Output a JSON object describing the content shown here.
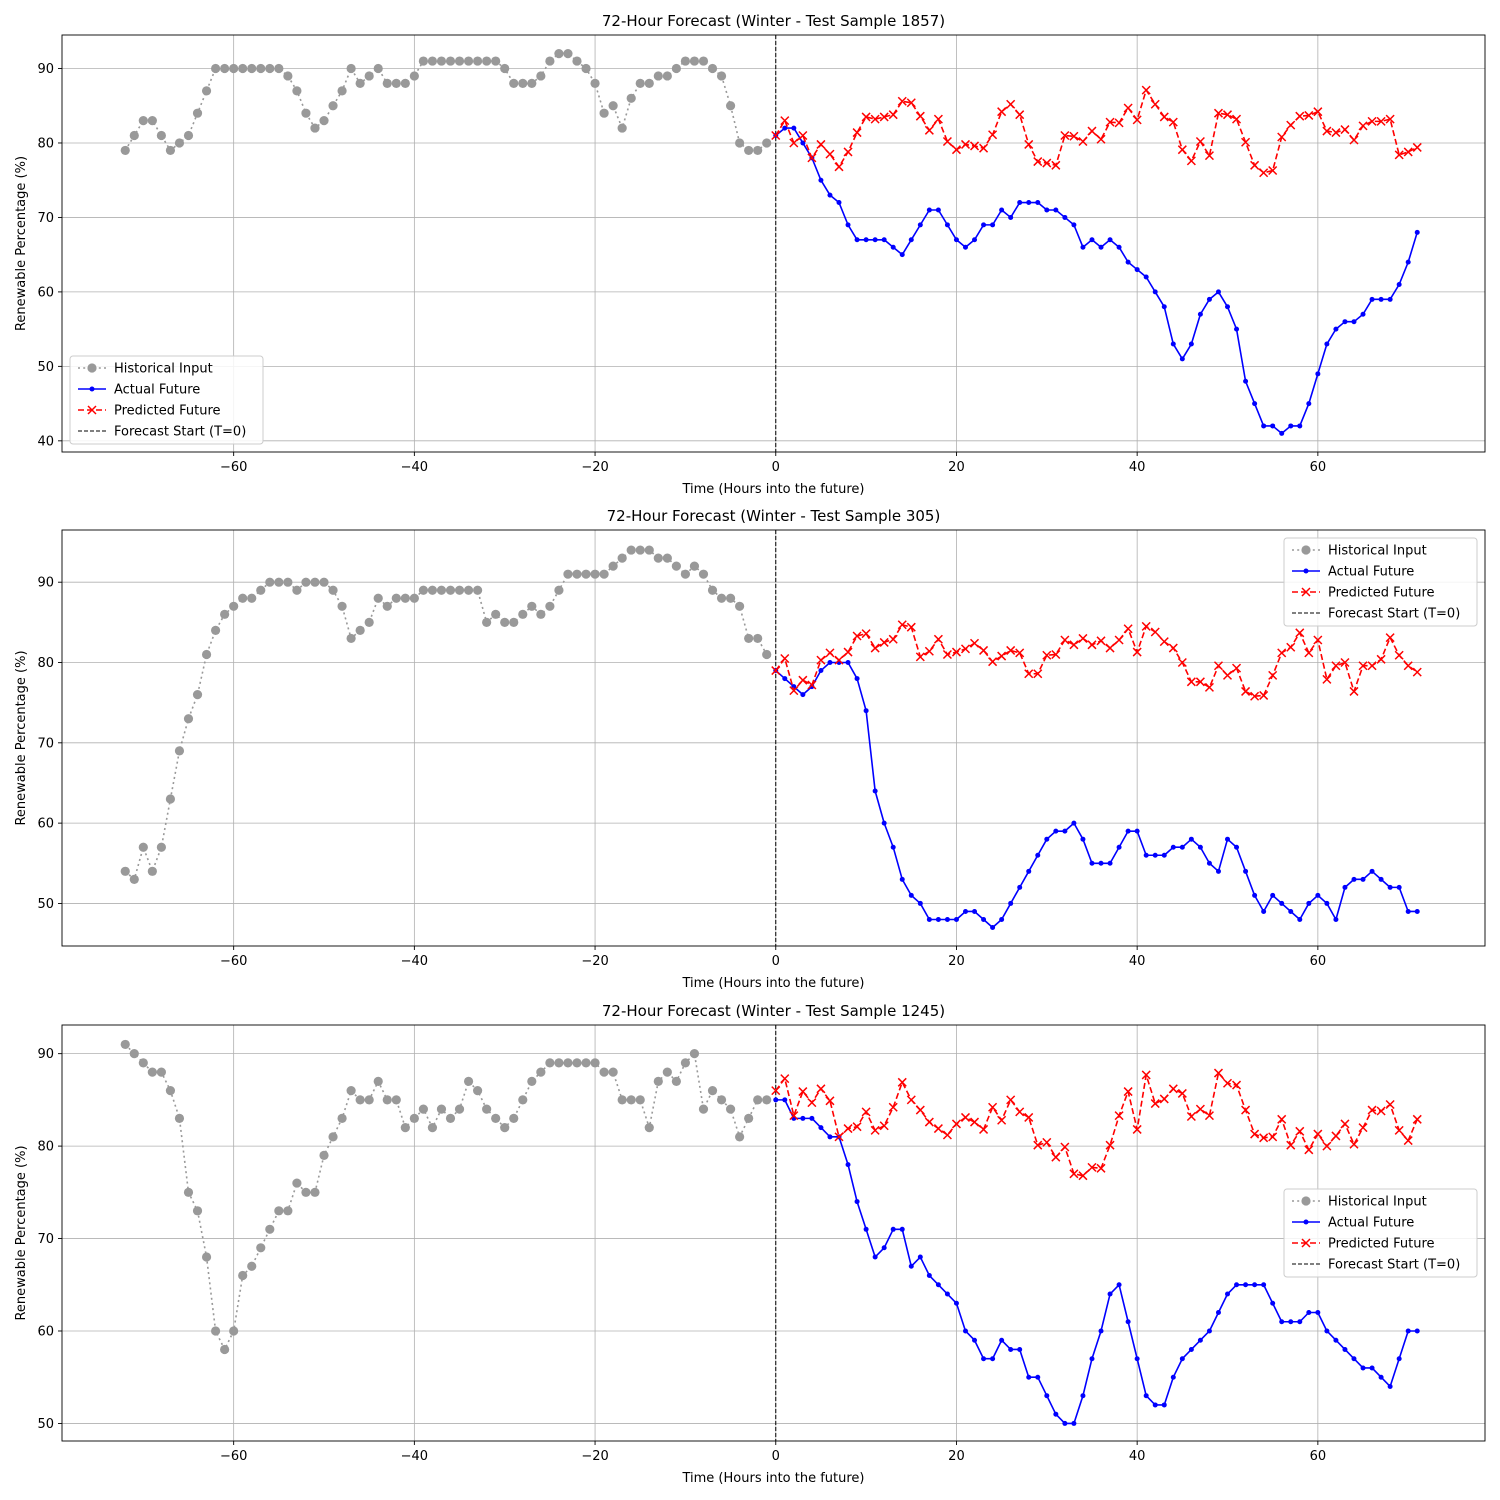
{
  "figure": {
    "background": "#ffffff"
  },
  "styles": {
    "historical": {
      "color": "#999999",
      "linestyle": "dotted",
      "marker": "circle"
    },
    "actual": {
      "color": "#0000ff",
      "linestyle": "solid",
      "marker": "dot"
    },
    "predicted": {
      "color": "#ff0000",
      "linestyle": "dashed",
      "marker": "x"
    },
    "forecast_start": {
      "color": "#000000",
      "linestyle": "dashed"
    },
    "grid": "#b0b0b0"
  },
  "legend_labels": [
    "Historical Input",
    "Actual Future",
    "Predicted Future",
    "Forecast Start (T=0)"
  ],
  "chart_data": [
    {
      "type": "line",
      "title": "72-Hour Forecast (Winter - Test Sample 1857)",
      "xlabel": "Time (Hours into the future)",
      "ylabel": "Renewable Percentage (%)",
      "xlim": [
        -79,
        78.5
      ],
      "ylim": [
        38.5,
        94.5
      ],
      "xticks": [
        -60,
        -40,
        -20,
        0,
        20,
        40,
        60
      ],
      "yticks": [
        40,
        50,
        60,
        70,
        80,
        90
      ],
      "grid": true,
      "legend_position": "lower-left",
      "forecast_start_x": 0,
      "series": [
        {
          "name": "Historical Input",
          "x_start": -72,
          "values": [
            79,
            81,
            83,
            83,
            81,
            79,
            80,
            81,
            84,
            87,
            90,
            90,
            90,
            90,
            90,
            90,
            90,
            90,
            89,
            87,
            84,
            82,
            83,
            85,
            87,
            90,
            88,
            89,
            90,
            88,
            88,
            88,
            89,
            91,
            91,
            91,
            91,
            91,
            91,
            91,
            91,
            91,
            90,
            88,
            88,
            88,
            89,
            91,
            92,
            92,
            91,
            90,
            88,
            84,
            85,
            82,
            86,
            88,
            88,
            89,
            89,
            90,
            91,
            91,
            91,
            90,
            89,
            85,
            80,
            79,
            79,
            80
          ]
        },
        {
          "name": "Actual Future",
          "x_start": 0,
          "values": [
            81,
            82,
            82,
            80,
            78,
            75,
            73,
            72,
            69,
            67,
            67,
            67,
            67,
            66,
            65,
            67,
            69,
            71,
            71,
            69,
            67,
            66,
            67,
            69,
            69,
            71,
            70,
            72,
            72,
            72,
            71,
            71,
            70,
            69,
            66,
            67,
            66,
            67,
            66,
            64,
            63,
            62,
            60,
            58,
            53,
            51,
            53,
            57,
            59,
            60,
            58,
            55,
            48,
            45,
            42,
            42,
            41,
            42,
            42,
            45,
            49,
            53,
            55,
            56,
            56,
            57,
            59,
            59,
            59,
            61,
            64,
            68
          ]
        },
        {
          "name": "Predicted Future",
          "x_start": 0,
          "values": [
            81,
            83,
            80,
            81,
            78,
            79.8,
            78.5,
            76.8,
            78.8,
            81.4,
            83.5,
            83.2,
            83.5,
            83.8,
            85.6,
            85.4,
            83.6,
            81.7,
            83.2,
            80.2,
            79.1,
            79.8,
            79.6,
            79.3,
            81.1,
            84.2,
            85.2,
            83.8,
            79.8,
            77.5,
            77.3,
            77.0,
            81.0,
            80.9,
            80.2,
            81.6,
            80.5,
            82.8,
            82.7,
            84.7,
            83.1,
            87.1,
            85.2,
            83.5,
            82.8,
            79.1,
            77.6,
            80.2,
            78.3,
            84.0,
            83.8,
            83.2,
            80.1,
            77.0,
            76.0,
            76.3,
            80.8,
            82.4,
            83.6,
            83.7,
            84.2,
            81.6,
            81.4,
            81.8,
            80.4,
            82.3,
            82.9,
            82.9,
            83.2,
            78.4,
            78.8,
            79.4
          ]
        }
      ]
    },
    {
      "type": "line",
      "title": "72-Hour Forecast (Winter - Test Sample 305)",
      "xlabel": "Time (Hours into the future)",
      "ylabel": "Renewable Percentage (%)",
      "xlim": [
        -79,
        78.5
      ],
      "ylim": [
        44.7,
        96.5
      ],
      "xticks": [
        -60,
        -40,
        -20,
        0,
        20,
        40,
        60
      ],
      "yticks": [
        50,
        60,
        70,
        80,
        90
      ],
      "grid": true,
      "legend_position": "upper-right",
      "forecast_start_x": 0,
      "series": [
        {
          "name": "Historical Input",
          "x_start": -72,
          "values": [
            54,
            53,
            57,
            54,
            57,
            63,
            69,
            73,
            76,
            81,
            84,
            86,
            87,
            88,
            88,
            89,
            90,
            90,
            90,
            89,
            90,
            90,
            90,
            89,
            87,
            83,
            84,
            85,
            88,
            87,
            88,
            88,
            88,
            89,
            89,
            89,
            89,
            89,
            89,
            89,
            85,
            86,
            85,
            85,
            86,
            87,
            86,
            87,
            89,
            91,
            91,
            91,
            91,
            91,
            92,
            93,
            94,
            94,
            94,
            93,
            93,
            92,
            91,
            92,
            91,
            89,
            88,
            88,
            87,
            83,
            83,
            81
          ]
        },
        {
          "name": "Actual Future",
          "x_start": 0,
          "values": [
            79,
            78,
            77,
            76,
            77,
            79,
            80,
            80,
            80,
            78,
            74,
            64,
            60,
            57,
            53,
            51,
            50,
            48,
            48,
            48,
            48,
            49,
            49,
            48,
            47,
            48,
            50,
            52,
            54,
            56,
            58,
            59,
            59,
            60,
            58,
            55,
            55,
            55,
            57,
            59,
            59,
            56,
            56,
            56,
            57,
            57,
            58,
            57,
            55,
            54,
            58,
            57,
            54,
            51,
            49,
            51,
            50,
            49,
            48,
            50,
            51,
            50,
            48,
            52,
            53,
            53,
            54,
            53,
            52,
            52,
            49,
            49
          ]
        },
        {
          "name": "Predicted Future",
          "x_start": 0,
          "values": [
            79,
            80.5,
            76.5,
            77.8,
            77.2,
            80.3,
            81.2,
            80.3,
            81.3,
            83.3,
            83.6,
            81.8,
            82.5,
            82.9,
            84.7,
            84.4,
            80.7,
            81.4,
            82.9,
            81.0,
            81.3,
            81.7,
            82.4,
            81.5,
            80.1,
            80.8,
            81.5,
            81.2,
            78.6,
            78.6,
            80.9,
            81.0,
            82.8,
            82.2,
            83.0,
            82.2,
            82.7,
            81.8,
            82.8,
            84.2,
            81.3,
            84.5,
            83.8,
            82.6,
            81.8,
            80.0,
            77.6,
            77.6,
            76.9,
            79.6,
            78.4,
            79.3,
            76.4,
            75.8,
            75.9,
            78.4,
            81.2,
            81.9,
            83.7,
            81.2,
            82.8,
            77.9,
            79.6,
            80.0,
            76.4,
            79.6,
            79.6,
            80.4,
            83.1,
            80.9,
            79.6,
            78.8
          ]
        }
      ]
    },
    {
      "type": "line",
      "title": "72-Hour Forecast (Winter - Test Sample 1245)",
      "xlabel": "Time (Hours into the future)",
      "ylabel": "Renewable Percentage (%)",
      "xlim": [
        -79,
        78.5
      ],
      "ylim": [
        48.1,
        93.1
      ],
      "xticks": [
        -60,
        -40,
        -20,
        0,
        20,
        40,
        60
      ],
      "yticks": [
        50,
        60,
        70,
        80,
        90
      ],
      "grid": true,
      "legend_position": "center-right",
      "forecast_start_x": 0,
      "series": [
        {
          "name": "Historical Input",
          "x_start": -72,
          "values": [
            91,
            90,
            89,
            88,
            88,
            86,
            83,
            75,
            73,
            68,
            60,
            58,
            60,
            66,
            67,
            69,
            71,
            73,
            73,
            76,
            75,
            75,
            79,
            81,
            83,
            86,
            85,
            85,
            87,
            85,
            85,
            82,
            83,
            84,
            82,
            84,
            83,
            84,
            87,
            86,
            84,
            83,
            82,
            83,
            85,
            87,
            88,
            89,
            89,
            89,
            89,
            89,
            89,
            88,
            88,
            85,
            85,
            85,
            82,
            87,
            88,
            87,
            89,
            90,
            84,
            86,
            85,
            84,
            81,
            83,
            85,
            85
          ]
        },
        {
          "name": "Actual Future",
          "x_start": 0,
          "values": [
            85,
            85,
            83,
            83,
            83,
            82,
            81,
            81,
            78,
            74,
            71,
            68,
            69,
            71,
            71,
            67,
            68,
            66,
            65,
            64,
            63,
            60,
            59,
            57,
            57,
            59,
            58,
            58,
            55,
            55,
            53,
            51,
            50,
            50,
            53,
            57,
            60,
            64,
            65,
            61,
            57,
            53,
            52,
            52,
            55,
            57,
            58,
            59,
            60,
            62,
            64,
            65,
            65,
            65,
            65,
            63,
            61,
            61,
            61,
            62,
            62,
            60,
            59,
            58,
            57,
            56,
            56,
            55,
            54,
            57,
            60,
            60
          ]
        },
        {
          "name": "Predicted Future",
          "x_start": 0,
          "values": [
            86,
            87.3,
            83.3,
            85.9,
            84.7,
            86.2,
            84.9,
            81.0,
            81.9,
            82.1,
            83.7,
            81.7,
            82.2,
            84.2,
            86.9,
            85.0,
            83.9,
            82.6,
            81.9,
            81.2,
            82.4,
            83.1,
            82.6,
            81.8,
            84.2,
            82.8,
            85.0,
            83.7,
            83.1,
            80.1,
            80.4,
            78.8,
            79.9,
            77.0,
            76.8,
            77.7,
            77.6,
            80.1,
            83.3,
            85.9,
            81.8,
            87.7,
            84.6,
            85.1,
            86.2,
            85.7,
            83.2,
            84.0,
            83.3,
            87.9,
            86.8,
            86.6,
            83.9,
            81.3,
            80.9,
            81.0,
            82.9,
            80.1,
            81.6,
            79.6,
            81.3,
            80.0,
            81.1,
            82.4,
            80.2,
            82.0,
            83.9,
            83.8,
            84.5,
            81.7,
            80.6,
            82.9
          ]
        }
      ]
    }
  ]
}
